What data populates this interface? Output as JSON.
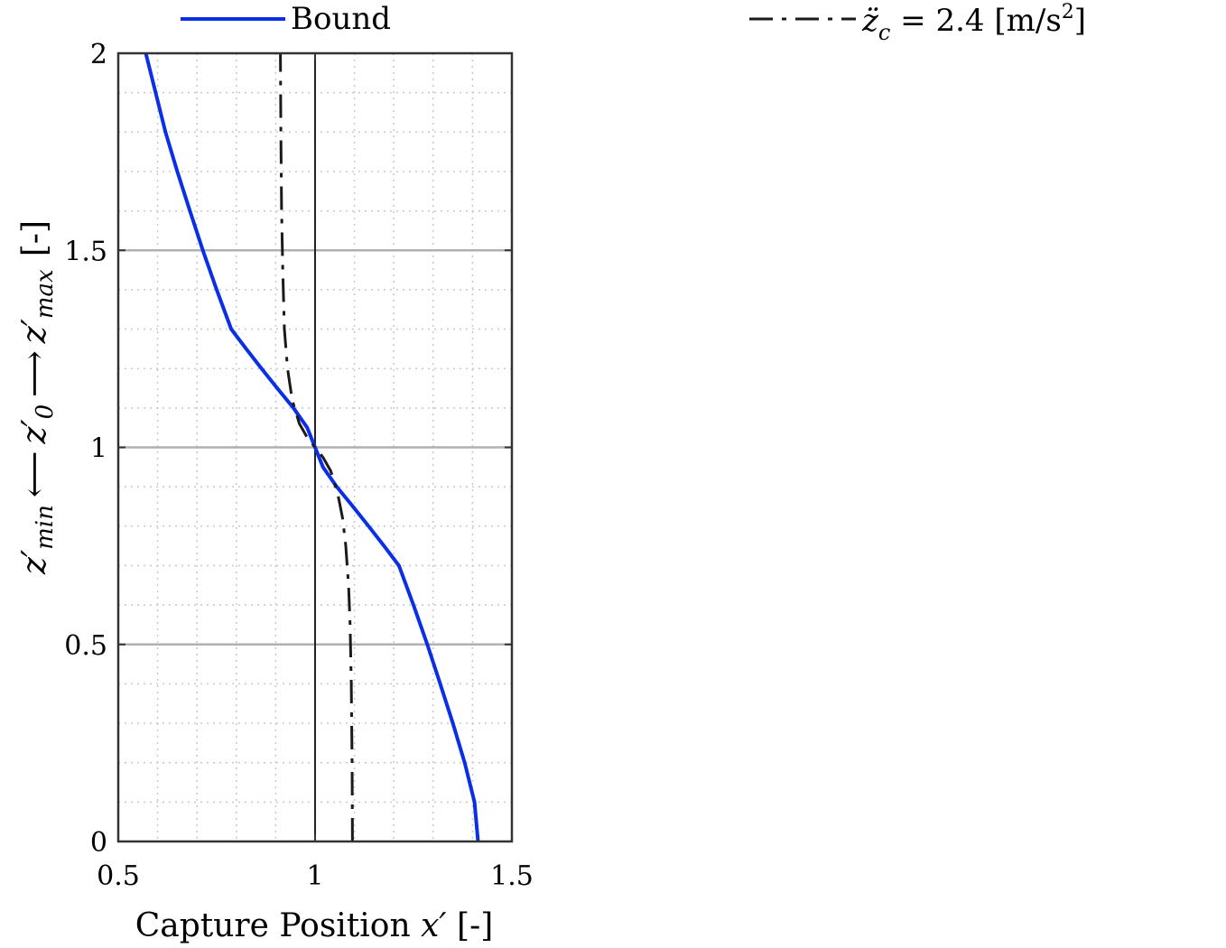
{
  "chart_data": {
    "type": "line",
    "title": "",
    "xlabel_text": "Capture Position ",
    "xlabel_var": "x′",
    "xlabel_unit": " [-]",
    "ylabel_parts": {
      "zmin": "z′",
      "zmin_sub": "min",
      "arrow_left": "⟵",
      "z0": "z′",
      "z0_sub": "0",
      "arrow_right": "⟶",
      "zmax": "z′",
      "zmax_sub": "max",
      "unit": "[-]"
    },
    "xlim": [
      0.5,
      1.5
    ],
    "ylim": [
      0,
      2
    ],
    "xticks": [
      0.5,
      1,
      1.5
    ],
    "xtick_labels": [
      "0.5",
      "1",
      "1.5"
    ],
    "yticks": [
      0,
      0.5,
      1,
      1.5,
      2
    ],
    "ytick_labels": [
      "0",
      "0.5",
      "1",
      "1.5",
      "2"
    ],
    "grid": true,
    "minor_grid": true,
    "legend_placement": "top",
    "series": [
      {
        "name": "Bound",
        "color": "#0a2fe6",
        "style": "solid",
        "x": [
          1.414,
          1.405,
          1.38,
          1.35,
          1.318,
          1.285,
          1.25,
          1.213,
          1.175,
          1.136,
          1.096,
          1.055,
          1.02,
          1.0,
          0.98,
          0.945,
          0.904,
          0.864,
          0.825,
          0.787,
          0.75,
          0.715,
          0.682,
          0.65,
          0.62,
          0.595,
          0.57
        ],
        "y": [
          0.0,
          0.1,
          0.2,
          0.3,
          0.4,
          0.5,
          0.6,
          0.7,
          0.75,
          0.8,
          0.85,
          0.9,
          0.95,
          1.0,
          1.05,
          1.1,
          1.15,
          1.2,
          1.25,
          1.3,
          1.4,
          1.5,
          1.6,
          1.7,
          1.8,
          1.9,
          2.0
        ]
      },
      {
        "name_prefix": "z̈",
        "name_sub": "c",
        "name_suffix": " = 2.4 [m/s",
        "name_sup": "2",
        "name_end": "]",
        "color": "#1a1a1a",
        "style": "dashdot",
        "x": [
          1.095,
          1.094,
          1.092,
          1.089,
          1.085,
          1.078,
          1.07,
          1.058,
          1.04,
          1.02,
          1.0,
          0.98,
          0.96,
          0.942,
          0.93,
          0.922,
          0.918,
          0.915,
          0.913,
          0.912
        ],
        "y": [
          0.0,
          0.2,
          0.4,
          0.55,
          0.65,
          0.75,
          0.82,
          0.88,
          0.94,
          0.975,
          1.0,
          1.025,
          1.06,
          1.12,
          1.2,
          1.3,
          1.45,
          1.6,
          1.8,
          2.0
        ]
      }
    ],
    "reference_line": {
      "x": 1,
      "color": "#222222"
    }
  }
}
